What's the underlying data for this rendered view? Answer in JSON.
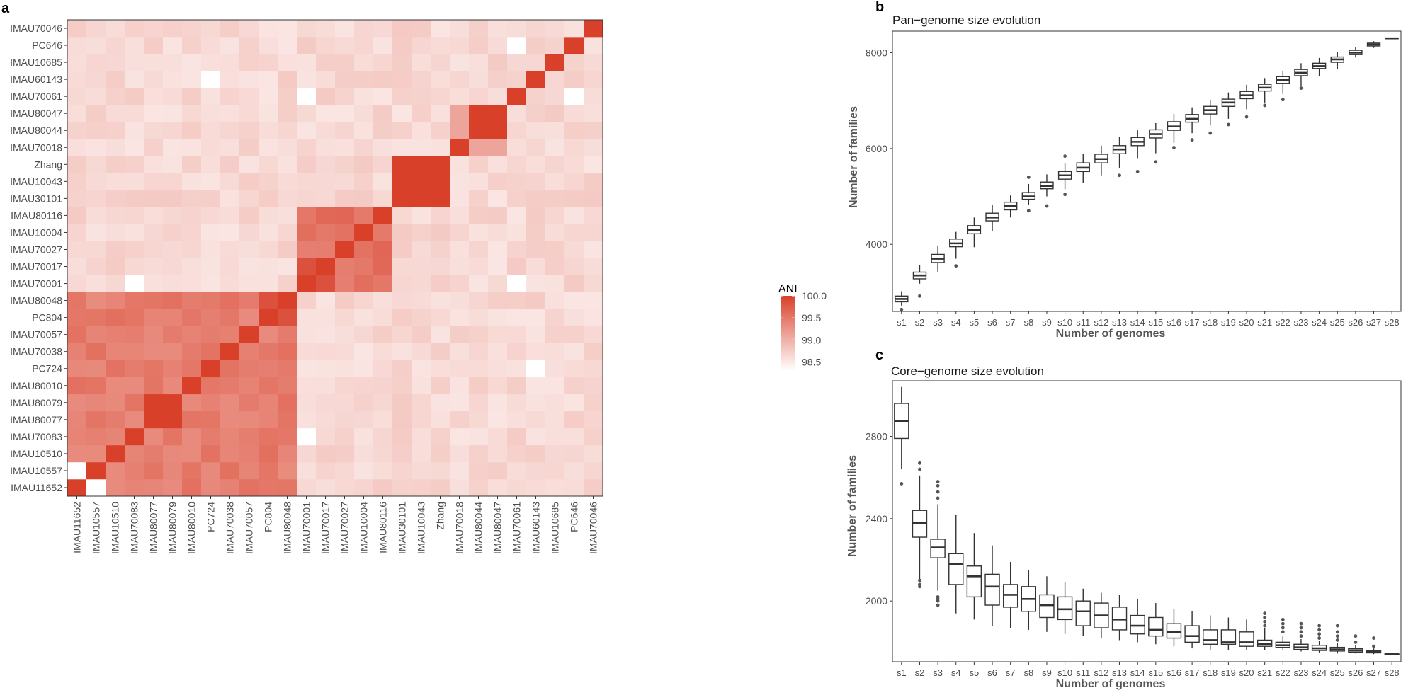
{
  "panels": {
    "a": {
      "letter": "a"
    },
    "b": {
      "letter": "b"
    },
    "c": {
      "letter": "c"
    }
  },
  "chart_data": [
    {
      "type": "heatmap",
      "panel": "a",
      "title": "",
      "xlabel": "",
      "ylabel": "",
      "colorbar": {
        "title": "ANI",
        "ticks": [
          100.0,
          99.5,
          99.0,
          98.5
        ],
        "tick_labels": [
          "100.0",
          "99.5",
          "99.0",
          "98.5"
        ],
        "range": [
          98.3,
          100.0
        ],
        "low_color": "#ffffff",
        "high_color": "#d9402a"
      },
      "x_labels": [
        "IMAU11652",
        "IMAU10557",
        "IMAU10510",
        "IMAU70083",
        "IMAU80077",
        "IMAU80079",
        "IMAU80010",
        "PC724",
        "IMAU70038",
        "IMAU70057",
        "PC804",
        "IMAU80048",
        "IMAU70001",
        "IMAU70017",
        "IMAU70027",
        "IMAU10004",
        "IMAU80116",
        "IMAU30101",
        "IMAU10043",
        "Zhang",
        "IMAU70018",
        "IMAU80044",
        "IMAU80047",
        "IMAU70061",
        "IMAU60143",
        "IMAU10685",
        "PC646",
        "IMAU70046"
      ],
      "y_labels_bottom_to_top": [
        "IMAU11652",
        "IMAU10557",
        "IMAU10510",
        "IMAU70083",
        "IMAU80077",
        "IMAU80079",
        "IMAU80010",
        "PC724",
        "IMAU70038",
        "IMAU70057",
        "PC804",
        "IMAU80048",
        "IMAU70001",
        "IMAU70017",
        "IMAU70027",
        "IMAU10004",
        "IMAU80116",
        "IMAU30101",
        "IMAU10043",
        "Zhang",
        "IMAU70018",
        "IMAU80044",
        "IMAU80047",
        "IMAU70061",
        "IMAU60143",
        "IMAU10685",
        "PC646",
        "IMAU70046"
      ],
      "groups": [
        {
          "members": [
            0,
            1,
            2,
            3,
            4,
            5,
            6,
            7,
            8,
            9,
            10,
            11
          ],
          "within_ani": 99.45
        },
        {
          "members": [
            12,
            13,
            14,
            15,
            16
          ],
          "within_ani": 99.55
        },
        {
          "members": [
            17,
            18,
            19
          ],
          "within_ani": 100.0
        },
        {
          "members": [
            20,
            21,
            22
          ],
          "within_ani": 99.55
        },
        {
          "members": [
            23
          ],
          "within_ani": 100.0
        },
        {
          "members": [
            24
          ],
          "within_ani": 100.0
        },
        {
          "members": [
            25
          ],
          "within_ani": 100.0
        },
        {
          "members": [
            26
          ],
          "within_ani": 100.0
        },
        {
          "members": [
            27
          ],
          "within_ani": 100.0
        }
      ],
      "background_ani": 98.65,
      "diagonal_ani": 100.0,
      "notable_pairs": [
        {
          "a": "IMAU80077",
          "b": "IMAU80079",
          "ani": 100.0
        },
        {
          "a": "IMAU80044",
          "b": "IMAU80047",
          "ani": 100.0
        },
        {
          "a": "IMAU30101",
          "b": "IMAU10043",
          "ani": 100.0
        },
        {
          "a": "IMAU30101",
          "b": "Zhang",
          "ani": 100.0
        },
        {
          "a": "IMAU10043",
          "b": "Zhang",
          "ani": 100.0
        },
        {
          "a": "IMAU70018",
          "b": "IMAU80044",
          "ani": 99.1
        },
        {
          "a": "IMAU70018",
          "b": "IMAU80047",
          "ani": 99.1
        },
        {
          "a": "PC804",
          "b": "IMAU80048",
          "ani": 99.85
        },
        {
          "a": "IMAU70001",
          "b": "IMAU70017",
          "ani": 99.85
        },
        {
          "a": "IMAU11652",
          "b": "IMAU10557",
          "ani": 98.3
        },
        {
          "a": "IMAU70001",
          "b": "IMAU70061",
          "ani": 98.3
        },
        {
          "a": "IMAU70061",
          "b": "PC646",
          "ani": 98.3
        },
        {
          "a": "IMAU60143",
          "b": "PC724",
          "ani": 98.3
        },
        {
          "a": "IMAU70083",
          "b": "IMAU70001",
          "ani": 98.3
        }
      ]
    },
    {
      "type": "boxplot",
      "panel": "b",
      "title": "Pan−genome size evolution",
      "xlabel": "Number of genomes",
      "ylabel": "Number of families",
      "ylim": [
        2600,
        8450
      ],
      "yticks": [
        4000,
        6000,
        8000
      ],
      "categories": [
        "s1",
        "s2",
        "s3",
        "s4",
        "s5",
        "s6",
        "s7",
        "s8",
        "s9",
        "s10",
        "s11",
        "s12",
        "s13",
        "s14",
        "s15",
        "s16",
        "s17",
        "s18",
        "s19",
        "s20",
        "s21",
        "s22",
        "s23",
        "s24",
        "s25",
        "s26",
        "s27",
        "s28"
      ],
      "boxes": [
        {
          "min": 2720,
          "q1": 2800,
          "median": 2860,
          "q3": 2920,
          "max": 3020,
          "outliers": [
            2640
          ]
        },
        {
          "min": 3180,
          "q1": 3280,
          "median": 3350,
          "q3": 3420,
          "max": 3560,
          "outliers": [
            2920
          ]
        },
        {
          "min": 3430,
          "q1": 3620,
          "median": 3700,
          "q3": 3790,
          "max": 3960,
          "outliers": []
        },
        {
          "min": 3700,
          "q1": 3950,
          "median": 4020,
          "q3": 4110,
          "max": 4260,
          "outliers": [
            3550
          ]
        },
        {
          "min": 3940,
          "q1": 4220,
          "median": 4300,
          "q3": 4390,
          "max": 4560,
          "outliers": []
        },
        {
          "min": 4270,
          "q1": 4490,
          "median": 4560,
          "q3": 4650,
          "max": 4820,
          "outliers": []
        },
        {
          "min": 4560,
          "q1": 4720,
          "median": 4800,
          "q3": 4880,
          "max": 5020,
          "outliers": []
        },
        {
          "min": 4820,
          "q1": 4940,
          "median": 5000,
          "q3": 5080,
          "max": 5260,
          "outliers": [
            4700,
            5400
          ]
        },
        {
          "min": 5000,
          "q1": 5160,
          "median": 5220,
          "q3": 5300,
          "max": 5460,
          "outliers": [
            4800
          ]
        },
        {
          "min": 5150,
          "q1": 5360,
          "median": 5440,
          "q3": 5520,
          "max": 5700,
          "outliers": [
            5040,
            5840
          ]
        },
        {
          "min": 5280,
          "q1": 5520,
          "median": 5600,
          "q3": 5700,
          "max": 5890,
          "outliers": []
        },
        {
          "min": 5440,
          "q1": 5700,
          "median": 5780,
          "q3": 5880,
          "max": 6060,
          "outliers": []
        },
        {
          "min": 5600,
          "q1": 5890,
          "median": 5980,
          "q3": 6060,
          "max": 6240,
          "outliers": [
            5440
          ]
        },
        {
          "min": 5800,
          "q1": 6060,
          "median": 6140,
          "q3": 6230,
          "max": 6380,
          "outliers": [
            5520
          ]
        },
        {
          "min": 5900,
          "q1": 6220,
          "median": 6300,
          "q3": 6390,
          "max": 6530,
          "outliers": [
            5720
          ]
        },
        {
          "min": 6120,
          "q1": 6380,
          "median": 6460,
          "q3": 6560,
          "max": 6720,
          "outliers": [
            6020
          ]
        },
        {
          "min": 6320,
          "q1": 6550,
          "median": 6620,
          "q3": 6710,
          "max": 6860,
          "outliers": [
            6180
          ]
        },
        {
          "min": 6480,
          "q1": 6720,
          "median": 6800,
          "q3": 6880,
          "max": 7020,
          "outliers": [
            6320
          ]
        },
        {
          "min": 6620,
          "q1": 6880,
          "median": 6960,
          "q3": 7030,
          "max": 7170,
          "outliers": [
            6500
          ]
        },
        {
          "min": 6820,
          "q1": 7040,
          "median": 7110,
          "q3": 7190,
          "max": 7330,
          "outliers": [
            6660
          ]
        },
        {
          "min": 6960,
          "q1": 7200,
          "median": 7270,
          "q3": 7340,
          "max": 7470,
          "outliers": [
            6900
          ]
        },
        {
          "min": 7140,
          "q1": 7360,
          "median": 7430,
          "q3": 7500,
          "max": 7620,
          "outliers": [
            7020
          ]
        },
        {
          "min": 7300,
          "q1": 7520,
          "median": 7580,
          "q3": 7650,
          "max": 7780,
          "outliers": [
            7260
          ]
        },
        {
          "min": 7520,
          "q1": 7670,
          "median": 7720,
          "q3": 7780,
          "max": 7890,
          "outliers": []
        },
        {
          "min": 7660,
          "q1": 7800,
          "median": 7860,
          "q3": 7910,
          "max": 8020,
          "outliers": []
        },
        {
          "min": 7900,
          "q1": 7960,
          "median": 8000,
          "q3": 8050,
          "max": 8120,
          "outliers": []
        },
        {
          "min": 8100,
          "q1": 8140,
          "median": 8170,
          "q3": 8200,
          "max": 8240,
          "outliers": []
        },
        {
          "min": 8300,
          "q1": 8300,
          "median": 8300,
          "q3": 8300,
          "max": 8300,
          "outliers": []
        }
      ]
    },
    {
      "type": "boxplot",
      "panel": "c",
      "title": "Core−genome size evolution",
      "xlabel": "Number of genomes",
      "ylabel": "Number of families",
      "ylim": [
        1705,
        3070
      ],
      "yticks": [
        2000,
        2400,
        2800
      ],
      "categories": [
        "s1",
        "s2",
        "s3",
        "s4",
        "s5",
        "s6",
        "s7",
        "s8",
        "s9",
        "s10",
        "s11",
        "s12",
        "s13",
        "s14",
        "s15",
        "s16",
        "s17",
        "s18",
        "s19",
        "s20",
        "s21",
        "s22",
        "s23",
        "s24",
        "s25",
        "s26",
        "s27",
        "s28"
      ],
      "boxes": [
        {
          "min": 2640,
          "q1": 2790,
          "median": 2875,
          "q3": 2960,
          "max": 3040,
          "outliers": [
            2570
          ]
        },
        {
          "min": 2090,
          "q1": 2310,
          "median": 2380,
          "q3": 2440,
          "max": 2610,
          "outliers": [
            2070,
            2080,
            2100,
            2640,
            2670
          ]
        },
        {
          "min": 2050,
          "q1": 2210,
          "median": 2260,
          "q3": 2300,
          "max": 2470,
          "outliers": [
            1980,
            2000,
            2010,
            2020,
            2500,
            2530,
            2560,
            2580
          ]
        },
        {
          "min": 1940,
          "q1": 2080,
          "median": 2180,
          "q3": 2230,
          "max": 2420,
          "outliers": []
        },
        {
          "min": 1910,
          "q1": 2020,
          "median": 2120,
          "q3": 2170,
          "max": 2330,
          "outliers": []
        },
        {
          "min": 1880,
          "q1": 1980,
          "median": 2070,
          "q3": 2130,
          "max": 2270,
          "outliers": []
        },
        {
          "min": 1870,
          "q1": 1970,
          "median": 2030,
          "q3": 2080,
          "max": 2190,
          "outliers": []
        },
        {
          "min": 1860,
          "q1": 1950,
          "median": 2010,
          "q3": 2070,
          "max": 2150,
          "outliers": []
        },
        {
          "min": 1850,
          "q1": 1920,
          "median": 1980,
          "q3": 2030,
          "max": 2120,
          "outliers": []
        },
        {
          "min": 1840,
          "q1": 1910,
          "median": 1960,
          "q3": 2020,
          "max": 2090,
          "outliers": []
        },
        {
          "min": 1830,
          "q1": 1880,
          "median": 1950,
          "q3": 2000,
          "max": 2060,
          "outliers": []
        },
        {
          "min": 1820,
          "q1": 1870,
          "median": 1930,
          "q3": 1990,
          "max": 2040,
          "outliers": []
        },
        {
          "min": 1810,
          "q1": 1860,
          "median": 1910,
          "q3": 1970,
          "max": 2030,
          "outliers": []
        },
        {
          "min": 1800,
          "q1": 1840,
          "median": 1880,
          "q3": 1930,
          "max": 2010,
          "outliers": []
        },
        {
          "min": 1790,
          "q1": 1830,
          "median": 1860,
          "q3": 1920,
          "max": 1990,
          "outliers": []
        },
        {
          "min": 1780,
          "q1": 1820,
          "median": 1850,
          "q3": 1890,
          "max": 1960,
          "outliers": []
        },
        {
          "min": 1770,
          "q1": 1800,
          "median": 1830,
          "q3": 1880,
          "max": 1950,
          "outliers": []
        },
        {
          "min": 1760,
          "q1": 1790,
          "median": 1810,
          "q3": 1860,
          "max": 1930,
          "outliers": []
        },
        {
          "min": 1760,
          "q1": 1790,
          "median": 1800,
          "q3": 1860,
          "max": 1920,
          "outliers": []
        },
        {
          "min": 1760,
          "q1": 1780,
          "median": 1800,
          "q3": 1850,
          "max": 1910,
          "outliers": []
        },
        {
          "min": 1760,
          "q1": 1780,
          "median": 1790,
          "q3": 1810,
          "max": 1870,
          "outliers": [
            1880,
            1900,
            1920,
            1940
          ]
        },
        {
          "min": 1760,
          "q1": 1775,
          "median": 1785,
          "q3": 1800,
          "max": 1830,
          "outliers": [
            1850,
            1870,
            1890,
            1910
          ]
        },
        {
          "min": 1755,
          "q1": 1765,
          "median": 1775,
          "q3": 1790,
          "max": 1815,
          "outliers": [
            1830,
            1850,
            1870,
            1890
          ]
        },
        {
          "min": 1750,
          "q1": 1760,
          "median": 1770,
          "q3": 1785,
          "max": 1805,
          "outliers": [
            1820,
            1840,
            1860,
            1880
          ]
        },
        {
          "min": 1745,
          "q1": 1757,
          "median": 1765,
          "q3": 1775,
          "max": 1795,
          "outliers": [
            1810,
            1830,
            1850,
            1880
          ]
        },
        {
          "min": 1745,
          "q1": 1752,
          "median": 1760,
          "q3": 1768,
          "max": 1785,
          "outliers": [
            1800,
            1830
          ]
        },
        {
          "min": 1742,
          "q1": 1748,
          "median": 1752,
          "q3": 1758,
          "max": 1770,
          "outliers": [
            1780,
            1820
          ]
        },
        {
          "min": 1742,
          "q1": 1742,
          "median": 1742,
          "q3": 1742,
          "max": 1742,
          "outliers": []
        }
      ]
    }
  ]
}
